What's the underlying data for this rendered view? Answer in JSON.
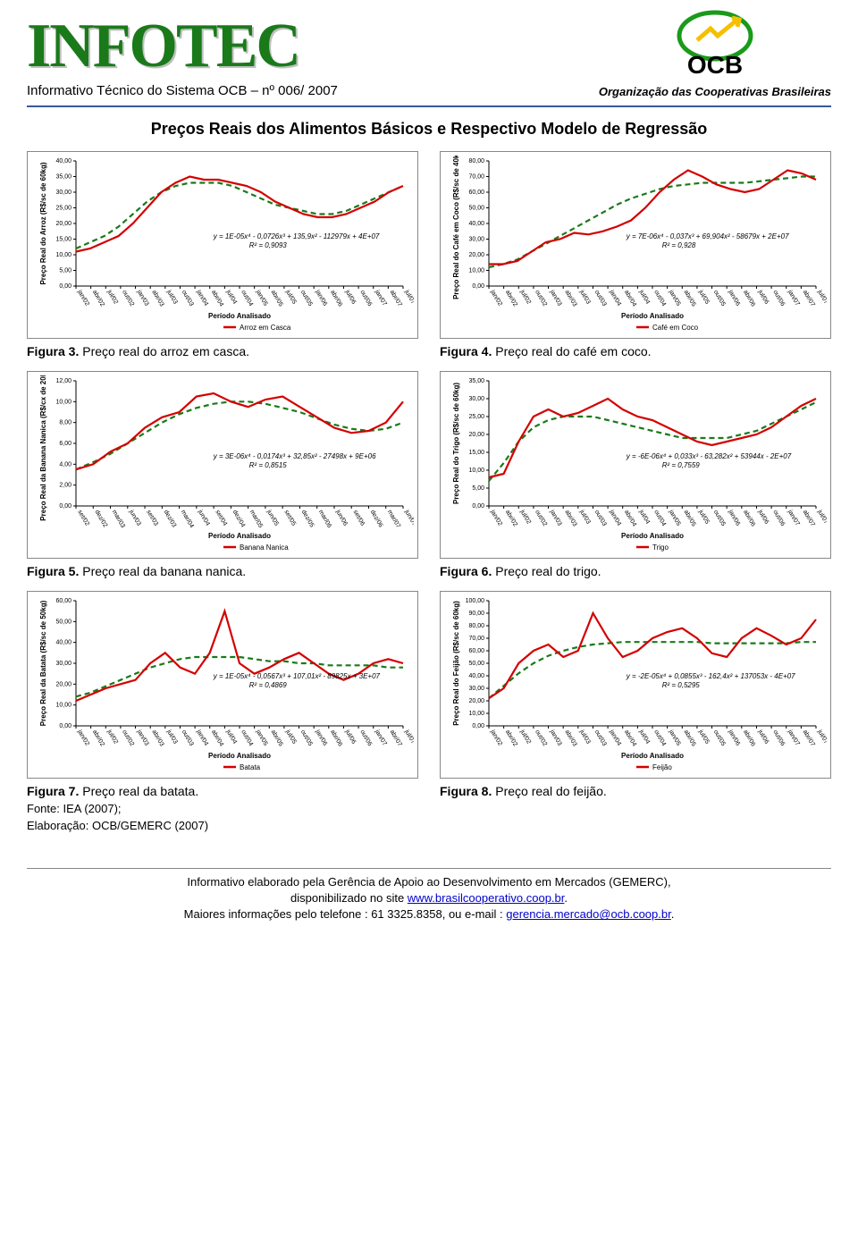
{
  "header": {
    "brand": "INFOTEC",
    "subtitle": "Informativo Técnico do Sistema OCB – nº 006/ 2007",
    "org_name": "OCB",
    "org_tagline": "Organização das Cooperativas Brasileiras"
  },
  "main_title": "Preços Reais dos Alimentos Básicos e Respectivo Modelo de Regressão",
  "charts": [
    {
      "key": "arroz",
      "caption_bold": "Figura 3.",
      "caption_text": " Preço real do arroz em casca.",
      "y_label": "Preço Real do Arroz (R$/sc de 60kg)",
      "x_label": "Período Analisado",
      "legend": "Arroz em Casca",
      "equation": "y = 1E-05x⁴ - 0,0726x³ + 135,9x² - 112979x + 4E+07",
      "r2": "R² = 0,9093",
      "ylim": [
        0,
        40
      ],
      "ytick": 5,
      "xticks": [
        "jan/02",
        "abr/02",
        "jul/02",
        "out/02",
        "jan/03",
        "abr/03",
        "jul/03",
        "out/03",
        "jan/04",
        "abr/04",
        "jul/04",
        "out/04",
        "jan/05",
        "abr/05",
        "jul/05",
        "out/05",
        "jan/06",
        "abr/06",
        "jul/06",
        "out/06",
        "jan/07",
        "abr/07",
        "jul/07"
      ],
      "series_color": "#d40000",
      "trend_color": "#1a7a1a",
      "trend_dash": "6,4",
      "data": [
        11,
        12,
        14,
        16,
        20,
        25,
        30,
        33,
        35,
        34,
        34,
        33,
        32,
        30,
        27,
        25,
        23,
        22,
        22,
        23,
        25,
        27,
        30,
        32
      ],
      "trend": [
        12,
        14,
        16,
        19,
        23,
        27,
        30,
        32,
        33,
        33,
        33,
        32,
        30,
        28,
        26,
        25,
        24,
        23,
        23,
        24,
        26,
        28,
        30,
        32
      ]
    },
    {
      "key": "cafe",
      "caption_bold": "Figura 4.",
      "caption_text": " Preço real do café em coco.",
      "y_label": "Preço Real do Café em Coco (R$/sc de 40kg)",
      "x_label": "Período Analisado",
      "legend": "Café em Coco",
      "equation": "y = 7E-06x⁴ - 0,037x³ + 69,904x² - 58679x + 2E+07",
      "r2": "R² = 0,928",
      "ylim": [
        0,
        80
      ],
      "ytick": 10,
      "xticks": [
        "jan/02",
        "abr/02",
        "jul/02",
        "out/02",
        "jan/03",
        "abr/03",
        "jul/03",
        "out/03",
        "jan/04",
        "abr/04",
        "jul/04",
        "out/04",
        "jan/05",
        "abr/05",
        "jul/05",
        "out/05",
        "jan/06",
        "abr/06",
        "jul/06",
        "out/06",
        "jan/07",
        "abr/07",
        "jul/07"
      ],
      "series_color": "#d40000",
      "trend_color": "#1a7a1a",
      "trend_dash": "6,4",
      "data": [
        14,
        14,
        16,
        22,
        28,
        30,
        34,
        33,
        35,
        38,
        42,
        50,
        60,
        68,
        74,
        70,
        65,
        62,
        60,
        62,
        68,
        74,
        72,
        68
      ],
      "trend": [
        12,
        14,
        17,
        22,
        27,
        32,
        37,
        42,
        47,
        52,
        56,
        59,
        62,
        64,
        65,
        66,
        66,
        66,
        66,
        67,
        68,
        69,
        70,
        70
      ]
    },
    {
      "key": "banana",
      "caption_bold": "Figura 5.",
      "caption_text": " Preço real da banana nanica.",
      "y_label": "Preço Real da Banana Nanica (R$/cx de 20kg)",
      "x_label": "Período Analisado",
      "legend": "Banana Nanica",
      "equation": "y = 3E-06x⁴ - 0,0174x³ + 32,85x² - 27498x + 9E+06",
      "r2": "R² = 0,8515",
      "ylim": [
        0,
        12
      ],
      "ytick": 2,
      "xticks": [
        "set/02",
        "dez/02",
        "mar/03",
        "jun/03",
        "set/03",
        "dez/03",
        "mar/04",
        "jun/04",
        "set/04",
        "dez/04",
        "mar/05",
        "jun/05",
        "set/05",
        "dez/05",
        "mar/06",
        "jun/06",
        "set/06",
        "dez/06",
        "mar/07",
        "jun/07"
      ],
      "series_color": "#d40000",
      "trend_color": "#1a7a1a",
      "trend_dash": "6,4",
      "data": [
        3.5,
        4.0,
        5.2,
        6.0,
        7.5,
        8.5,
        9.0,
        10.5,
        10.8,
        10.0,
        9.5,
        10.2,
        10.5,
        9.5,
        8.5,
        7.5,
        7.0,
        7.2,
        8.0,
        10.0
      ],
      "trend": [
        3.5,
        4.2,
        5.0,
        6.0,
        7.0,
        8.0,
        8.8,
        9.4,
        9.8,
        10.0,
        10.0,
        9.8,
        9.4,
        9.0,
        8.4,
        7.8,
        7.4,
        7.2,
        7.4,
        8.0
      ]
    },
    {
      "key": "trigo",
      "caption_bold": "Figura 6.",
      "caption_text": " Preço real do trigo.",
      "y_label": "Preço Real do Trigo (R$/sc de 60kg)",
      "x_label": "Período Analisado",
      "legend": "Trigo",
      "equation": "y = -6E-06x⁴ + 0,033x³ - 63,282x² + 53944x - 2E+07",
      "r2": "R² = 0,7559",
      "ylim": [
        0,
        35
      ],
      "ytick": 5,
      "xticks": [
        "jan/02",
        "abr/02",
        "jul/02",
        "out/02",
        "jan/03",
        "abr/03",
        "jul/03",
        "out/03",
        "jan/04",
        "abr/04",
        "jul/04",
        "out/04",
        "jan/05",
        "abr/05",
        "jul/05",
        "out/05",
        "jan/06",
        "abr/06",
        "jul/06",
        "out/06",
        "jan/07",
        "abr/07",
        "jul/07"
      ],
      "series_color": "#d40000",
      "trend_color": "#1a7a1a",
      "trend_dash": "6,4",
      "data": [
        8,
        9,
        18,
        25,
        27,
        25,
        26,
        28,
        30,
        27,
        25,
        24,
        22,
        20,
        18,
        17,
        18,
        19,
        20,
        22,
        25,
        28,
        30
      ],
      "trend": [
        7,
        12,
        18,
        22,
        24,
        25,
        25,
        25,
        24,
        23,
        22,
        21,
        20,
        19,
        19,
        19,
        19,
        20,
        21,
        23,
        25,
        27,
        29
      ]
    },
    {
      "key": "batata",
      "caption_bold": "Figura 7.",
      "caption_text": " Preço real da batata.",
      "y_label": "Preço Real da Batata (R$/sc de 50kg)",
      "x_label": "Período Analisado",
      "legend": "Batata",
      "equation": "y = 1E-05x⁴ - 0,0567x³ + 107,01x² - 89825x + 3E+07",
      "r2": "R² = 0,4869",
      "ylim": [
        0,
        60
      ],
      "ytick": 10,
      "xticks": [
        "jan/02",
        "abr/02",
        "jul/02",
        "out/02",
        "jan/03",
        "abr/03",
        "jul/03",
        "out/03",
        "jan/04",
        "abr/04",
        "jul/04",
        "out/04",
        "jan/05",
        "abr/05",
        "jul/05",
        "out/05",
        "jan/06",
        "abr/06",
        "jul/06",
        "out/06",
        "jan/07",
        "abr/07",
        "jul/07"
      ],
      "series_color": "#d40000",
      "trend_color": "#1a7a1a",
      "trend_dash": "6,4",
      "data": [
        12,
        15,
        18,
        20,
        22,
        30,
        35,
        28,
        25,
        35,
        55,
        30,
        25,
        28,
        32,
        35,
        30,
        25,
        22,
        25,
        30,
        32,
        30
      ],
      "trend": [
        14,
        16,
        19,
        22,
        25,
        28,
        30,
        32,
        33,
        33,
        33,
        33,
        32,
        31,
        31,
        30,
        30,
        29,
        29,
        29,
        29,
        28,
        28
      ]
    },
    {
      "key": "feijao",
      "caption_bold": "Figura 8.",
      "caption_text": " Preço real do feijão.",
      "y_label": "Preço Real do Feijão (R$/sc de 60kg)",
      "x_label": "Período Analisado",
      "legend": "Feijão",
      "equation": "y = -2E-05x⁴ + 0,0855x³ - 162,4x² + 137053x - 4E+07",
      "r2": "R² = 0,5295",
      "ylim": [
        0,
        100
      ],
      "ytick": 10,
      "xticks": [
        "jan/02",
        "abr/02",
        "jul/02",
        "out/02",
        "jan/03",
        "abr/03",
        "jul/03",
        "out/03",
        "jan/04",
        "abr/04",
        "jul/04",
        "out/04",
        "jan/05",
        "abr/05",
        "jul/05",
        "out/05",
        "jan/06",
        "abr/06",
        "jul/06",
        "out/06",
        "jan/07",
        "abr/07",
        "jul/07"
      ],
      "series_color": "#d40000",
      "trend_color": "#1a7a1a",
      "trend_dash": "6,4",
      "data": [
        22,
        30,
        50,
        60,
        65,
        55,
        60,
        90,
        70,
        55,
        60,
        70,
        75,
        78,
        70,
        58,
        55,
        70,
        78,
        72,
        65,
        70,
        85
      ],
      "trend": [
        22,
        32,
        42,
        50,
        56,
        60,
        63,
        65,
        66,
        67,
        67,
        67,
        67,
        67,
        67,
        66,
        66,
        66,
        66,
        66,
        66,
        67,
        67
      ]
    }
  ],
  "source_lines": [
    "Fonte: IEA (2007);",
    "Elaboração: OCB/GEMERC (2007)"
  ],
  "footer": {
    "l1": "Informativo elaborado pela Gerência de Apoio ao Desenvolvimento em Mercados (GEMERC),",
    "l2_pre": "disponibilizado no site ",
    "l2_link": "www.brasilcooperativo.coop.br",
    "l2_suf": ".",
    "l3_pre": "Maiores informações pelo telefone : 61 3325.8358, ou e-mail : ",
    "l3_link": "gerencia.mercado@ocb.coop.br",
    "l3_suf": "."
  },
  "style": {
    "axis_color": "#000000",
    "tick_font": 7,
    "axis_label_font": 8,
    "legend_font": 8,
    "eq_font": 8
  }
}
